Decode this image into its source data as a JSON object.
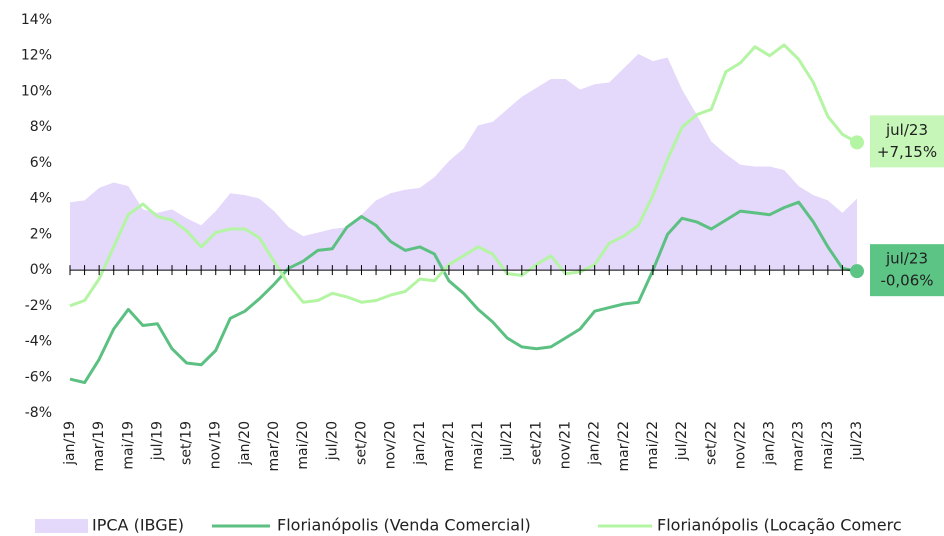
{
  "chart_data": {
    "type": "line",
    "categories": [
      "jan/19",
      null,
      "mar/19",
      null,
      "mai/19",
      null,
      "jul/19",
      null,
      "set/19",
      null,
      "nov/19",
      null,
      "jan/20",
      null,
      "mar/20",
      null,
      "mai/20",
      null,
      "jul/20",
      null,
      "set/20",
      null,
      "nov/20",
      null,
      "jan/21",
      null,
      "mar/21",
      null,
      "mai/21",
      null,
      "jul/21",
      null,
      "set/21",
      null,
      "nov/21",
      null,
      "jan/22",
      null,
      "mar/22",
      null,
      "mai/22",
      null,
      "jul/22",
      null,
      "set/22",
      null,
      "nov/22",
      null,
      "jan/23",
      null,
      "mar/23",
      null,
      "mai/23",
      null,
      "jul/23"
    ],
    "series": [
      {
        "name": "IPCA (IBGE)",
        "style": "area",
        "color": "#e4d8fb",
        "values": [
          3.8,
          3.9,
          4.6,
          4.9,
          4.7,
          3.4,
          3.2,
          3.4,
          2.9,
          2.5,
          3.3,
          4.3,
          4.2,
          4.0,
          3.3,
          2.4,
          1.9,
          2.1,
          2.3,
          2.4,
          3.1,
          3.9,
          4.3,
          4.5,
          4.6,
          5.2,
          6.1,
          6.8,
          8.1,
          8.3,
          9.0,
          9.7,
          10.2,
          10.7,
          10.7,
          10.1,
          10.4,
          10.5,
          11.3,
          12.1,
          11.7,
          11.9,
          10.1,
          8.7,
          7.2,
          6.5,
          5.9,
          5.8,
          5.8,
          5.6,
          4.7,
          4.2,
          3.9,
          3.2,
          4.0
        ]
      },
      {
        "name": "Florianópolis (Venda Comercial)",
        "style": "line",
        "color": "#5cc082",
        "values": [
          -6.1,
          -6.3,
          -5.0,
          -3.3,
          -2.2,
          -3.1,
          -3.0,
          -4.4,
          -5.2,
          -5.3,
          -4.5,
          -2.7,
          -2.3,
          -1.6,
          -0.8,
          0.1,
          0.5,
          1.1,
          1.2,
          2.4,
          3.0,
          2.5,
          1.6,
          1.1,
          1.3,
          0.9,
          -0.6,
          -1.3,
          -2.2,
          -2.9,
          -3.8,
          -4.3,
          -4.4,
          -4.3,
          -3.8,
          -3.3,
          -2.3,
          -2.1,
          -1.9,
          -1.8,
          0.0,
          2.0,
          2.9,
          2.7,
          2.3,
          2.8,
          3.3,
          3.2,
          3.1,
          3.5,
          3.8,
          2.7,
          1.3,
          0.1,
          -0.06
        ],
        "end_label": [
          "jul/23",
          "-0,06%"
        ],
        "label_color": "#5cc585"
      },
      {
        "name": "Florianópolis (Locação Comerc",
        "style": "line",
        "color": "#b4f5a3",
        "values": [
          -2.0,
          -1.7,
          -0.5,
          1.3,
          3.1,
          3.7,
          3.0,
          2.8,
          2.2,
          1.3,
          2.1,
          2.3,
          2.3,
          1.8,
          0.5,
          -0.8,
          -1.8,
          -1.7,
          -1.3,
          -1.5,
          -1.8,
          -1.7,
          -1.4,
          -1.2,
          -0.5,
          -0.6,
          0.3,
          0.8,
          1.3,
          0.9,
          -0.2,
          -0.3,
          0.3,
          0.8,
          -0.2,
          -0.1,
          0.3,
          1.5,
          1.9,
          2.5,
          4.2,
          6.2,
          8.0,
          8.7,
          9.0,
          11.1,
          11.6,
          12.5,
          12.0,
          12.6,
          11.8,
          10.5,
          8.6,
          7.6,
          7.15
        ],
        "end_label": [
          "jul/23",
          "+7,15%"
        ],
        "label_color": "#c6f7b8"
      }
    ],
    "ylim": [
      -8,
      14
    ],
    "yticks": [
      {
        "value": -8,
        "label": "-8%"
      },
      {
        "value": -6,
        "label": "-6%"
      },
      {
        "value": -4,
        "label": "-4%"
      },
      {
        "value": -2,
        "label": "-2%"
      },
      {
        "value": 0,
        "label": "0%"
      },
      {
        "value": 2,
        "label": "2%"
      },
      {
        "value": 4,
        "label": "4%"
      },
      {
        "value": 6,
        "label": "6%"
      },
      {
        "value": 8,
        "label": "8%"
      },
      {
        "value": 10,
        "label": "10%"
      },
      {
        "value": 12,
        "label": "12%"
      },
      {
        "value": 14,
        "label": "14%"
      }
    ],
    "grid": false,
    "legend": "bottom"
  }
}
